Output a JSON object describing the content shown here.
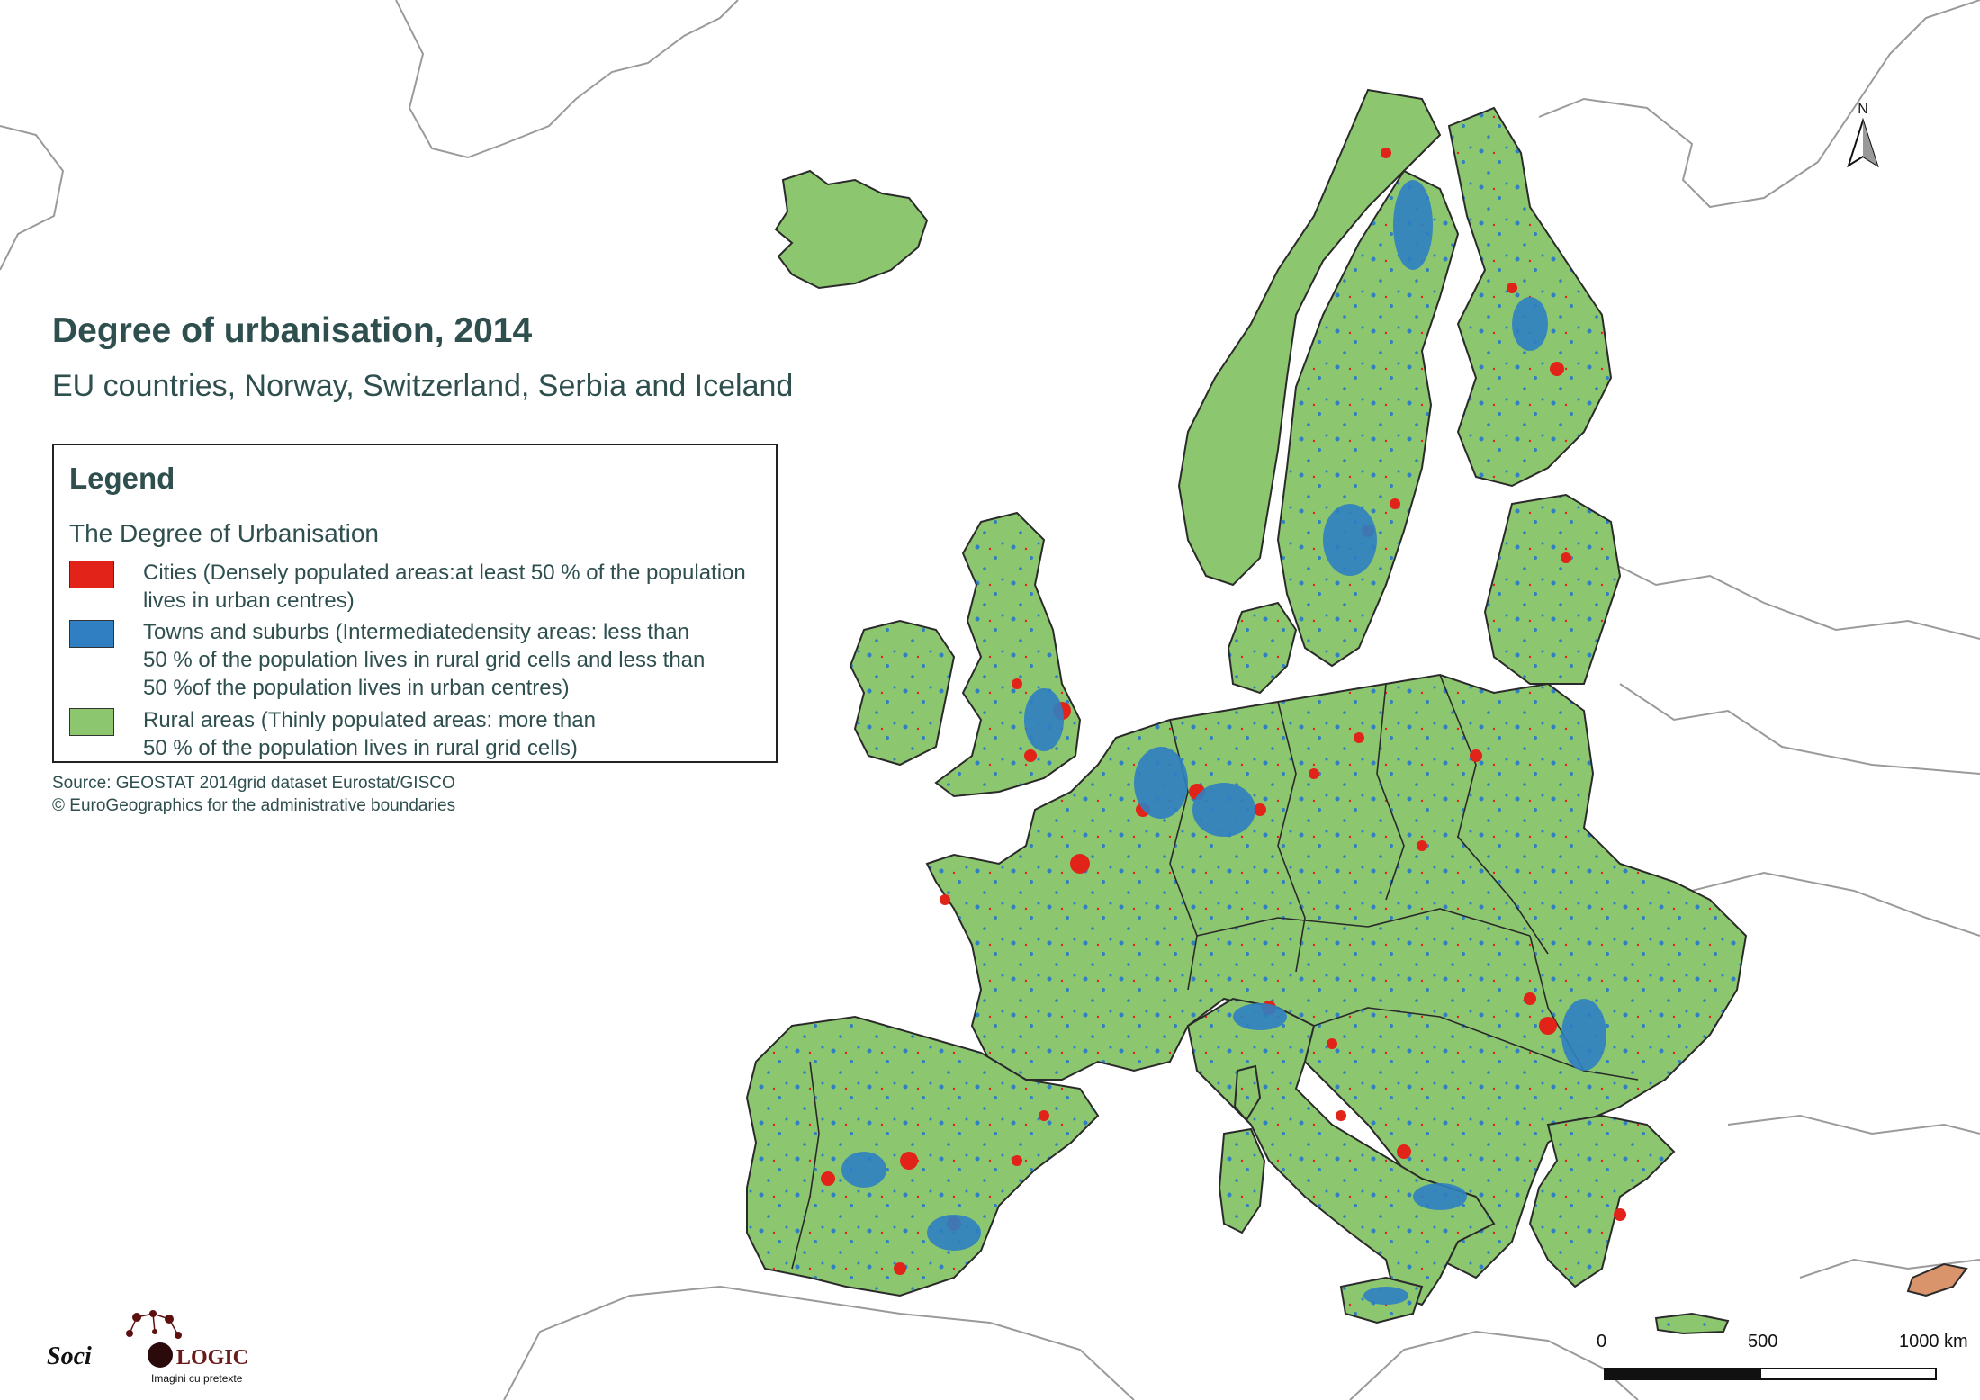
{
  "map": {
    "title": "Degree of urbanisation, 2014",
    "subtitle": "EU countries, Norway, Switzerland, Serbia and Iceland",
    "colors": {
      "background": "#ffffff",
      "rural": "#8cc66e",
      "towns": "#2f7fc2",
      "cities": "#e2231a",
      "border": "#2a2a2a",
      "neighbor_outline": "#9a9a9a",
      "cyprus": "#d9946c"
    }
  },
  "legend": {
    "title": "Legend",
    "subtitle": "The Degree of Urbanisation",
    "items": [
      {
        "color": "#e2231a",
        "line1": "Cities (Densely populated areas:at least 50 % of the population",
        "line2": "lives in urban centres)",
        "line3": ""
      },
      {
        "color": "#2f7fc2",
        "line1": "Towns and suburbs (Intermediatedensity areas: less than",
        "line2": "50 % of the population lives in rural grid cells and less than",
        "line3": "50 %of the population lives in urban centres)"
      },
      {
        "color": "#8cc66e",
        "line1": "Rural areas (Thinly populated areas: more than",
        "line2": "50 % of the population lives in rural grid cells)",
        "line3": ""
      }
    ]
  },
  "source": {
    "line1": "Source: GEOSTAT 2014grid dataset Eurostat/GISCO",
    "line2": "© EuroGeographics for the administrative boundaries"
  },
  "north_arrow": {
    "label": "N"
  },
  "scale": {
    "labels": [
      "0",
      "500",
      "1000 km"
    ]
  },
  "logo": {
    "text_left": "Soci",
    "text_right": "LOGIC",
    "tagline": "Imagini cu pretexte"
  }
}
